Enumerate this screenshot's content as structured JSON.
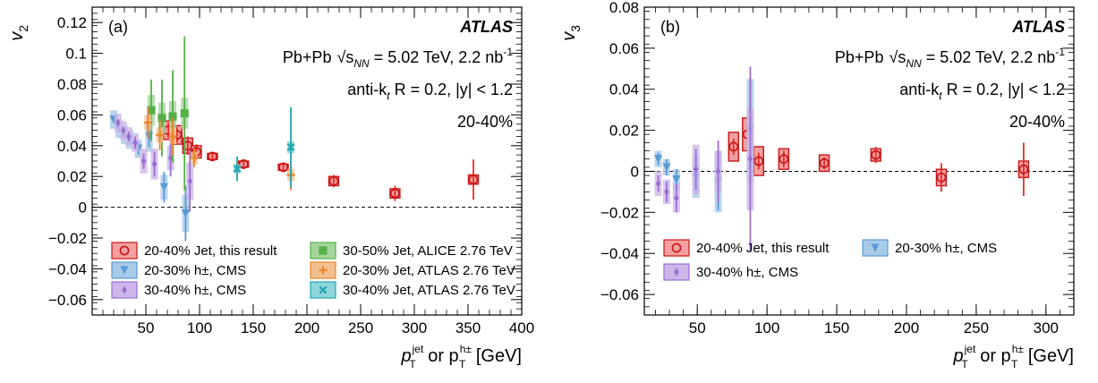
{
  "colors": {
    "this_result": "#f02828",
    "cms_2030": "#5a9bd5",
    "cms_3040": "#9a6fd0",
    "alice_3050": "#55b04a",
    "atlas276_2030": "#e8852a",
    "atlas276_3040": "#20a8b0"
  },
  "chart_data": [
    {
      "panel": "a",
      "type": "scatter",
      "panel_label": "(a)",
      "atlas_label": "ATLAS",
      "annotations": [
        "Pb+Pb",
        "√s",
        "NN",
        " = 5.02 TeV, 2.2 nb",
        "-1",
        "anti-k",
        "t",
        " R = 0.2, |y| < 1.2",
        "20-40%"
      ],
      "ylabel": "v",
      "ylabel_sub": "2",
      "xlabel": "p",
      "xlabel_sup1": "jet",
      "xlabel_sub1": "T",
      "xlabel_mid": " or p",
      "xlabel_sup2": "h±",
      "xlabel_sub2": "T",
      "xlabel_end": " [GeV]",
      "xlim": [
        0,
        400
      ],
      "ylim": [
        -0.07,
        0.13
      ],
      "xticks": [
        50,
        100,
        150,
        200,
        250,
        300,
        350,
        400
      ],
      "xtick_labels": [
        "50",
        "100",
        "150",
        "200",
        "250",
        "300",
        "350",
        "400"
      ],
      "yticks": [
        -0.06,
        -0.04,
        -0.02,
        0,
        0.02,
        0.04,
        0.06,
        0.08,
        0.1,
        0.12
      ],
      "ytick_labels": [
        "−0.06",
        "−0.04",
        "−0.02",
        "0",
        "0.02",
        "0.04",
        "0.06",
        "0.08",
        "0.1",
        "0.12"
      ],
      "legend": [
        {
          "label": "20-40% Jet, this result",
          "key": "this_result"
        },
        {
          "label": "30-50% Jet, ALICE 2.76 TeV",
          "key": "alice_3050"
        },
        {
          "label": "20-30% h±, CMS",
          "key": "cms_2030"
        },
        {
          "label": "20-30% Jet, ATLAS 2.76 TeV",
          "key": "atlas276_2030"
        },
        {
          "label": "30-40% h±, CMS",
          "key": "cms_3040"
        },
        {
          "label": "30-40% Jet, ATLAS 2.76 TeV",
          "key": "atlas276_3040"
        }
      ],
      "series": [
        {
          "key": "this_result",
          "marker": "circle",
          "x": [
            71,
            79,
            89,
            97,
            112,
            141,
            178,
            225,
            282,
            355
          ],
          "y": [
            0.05,
            0.047,
            0.04,
            0.036,
            0.033,
            0.028,
            0.026,
            0.017,
            0.009,
            0.018
          ],
          "err": [
            0.005,
            0.005,
            0.006,
            0.005,
            0.002,
            0.002,
            0.003,
            0.004,
            0.005,
            0.013
          ],
          "syst": [
            0.006,
            0.006,
            0.005,
            0.004,
            0.002,
            0.002,
            0.002,
            0.003,
            0.003,
            0.003
          ]
        },
        {
          "key": "cms_2030",
          "marker": "triangle-down",
          "x": [
            20,
            25,
            30,
            35,
            43,
            53,
            67,
            87
          ],
          "y": [
            0.057,
            0.051,
            0.047,
            0.044,
            0.038,
            0.046,
            0.013,
            -0.004
          ],
          "err": [
            0.002,
            0.002,
            0.003,
            0.003,
            0.004,
            0.007,
            0.01,
            0.018
          ],
          "syst": [
            0.006,
            0.006,
            0.006,
            0.006,
            0.006,
            0.01,
            0.008,
            0.012
          ]
        },
        {
          "key": "cms_3040",
          "marker": "diamond",
          "x": [
            24,
            29,
            34,
            40,
            48,
            58,
            73,
            91
          ],
          "y": [
            0.055,
            0.05,
            0.046,
            0.042,
            0.03,
            0.028,
            0.032,
            0.017
          ],
          "err": [
            0.002,
            0.002,
            0.003,
            0.004,
            0.005,
            0.008,
            0.012,
            0.02
          ],
          "syst": [
            0.006,
            0.006,
            0.006,
            0.006,
            0.008,
            0.01,
            0.008,
            0.012
          ]
        },
        {
          "key": "alice_3050",
          "marker": "square",
          "x": [
            55,
            65,
            75,
            86
          ],
          "y": [
            0.063,
            0.058,
            0.059,
            0.061
          ],
          "err": [
            0.02,
            0.025,
            0.03,
            0.05
          ],
          "syst": [
            0.01,
            0.01,
            0.01,
            0.01
          ]
        },
        {
          "key": "atlas276_2030",
          "marker": "cross",
          "x": [
            52,
            63,
            75,
            95,
            185
          ],
          "y": [
            0.055,
            0.047,
            0.046,
            0.032,
            0.021
          ],
          "err": [
            0.01,
            0.01,
            0.012,
            0.006,
            0.01
          ],
          "syst": [
            0.005,
            0.005,
            0.005,
            0.004,
            0.004
          ]
        },
        {
          "key": "atlas276_3040",
          "marker": "x",
          "x": [
            135,
            185
          ],
          "y": [
            0.025,
            0.039
          ],
          "err": [
            0.008,
            0.026
          ],
          "syst": [
            0.003,
            0.004
          ]
        }
      ]
    },
    {
      "panel": "b",
      "type": "scatter",
      "panel_label": "(b)",
      "atlas_label": "ATLAS",
      "annotations": [
        "Pb+Pb",
        "√s",
        "NN",
        " = 5.02 TeV, 2.2 nb",
        "-1",
        "anti-k",
        "t",
        " R = 0.2, |y| < 1.2",
        "20-40%"
      ],
      "ylabel": "v",
      "ylabel_sub": "3",
      "xlabel": "p",
      "xlabel_sup1": "jet",
      "xlabel_sub1": "T",
      "xlabel_mid": " or p",
      "xlabel_sup2": "h±",
      "xlabel_sub2": "T",
      "xlabel_end": " [GeV]",
      "xlim": [
        12,
        320
      ],
      "ylim": [
        -0.07,
        0.08
      ],
      "xticks": [
        50,
        100,
        150,
        200,
        250,
        300
      ],
      "xtick_labels": [
        "50",
        "100",
        "150",
        "200",
        "250",
        "300"
      ],
      "yticks": [
        -0.06,
        -0.04,
        -0.02,
        0,
        0.02,
        0.04,
        0.06,
        0.08
      ],
      "ytick_labels": [
        "−0.06",
        "−0.04",
        "−0.02",
        "0",
        "0.02",
        "0.04",
        "0.06",
        "0.08"
      ],
      "legend": [
        {
          "label": "20-40% Jet, this result",
          "key": "this_result"
        },
        {
          "label": "20-30% h±, CMS",
          "key": "cms_2030"
        },
        {
          "label": "30-40% h±, CMS",
          "key": "cms_3040"
        }
      ],
      "series": [
        {
          "key": "this_result",
          "marker": "circle",
          "x": [
            76,
            86,
            94,
            112,
            141,
            178,
            225,
            284
          ],
          "y": [
            0.012,
            0.018,
            0.005,
            0.006,
            0.004,
            0.008,
            -0.003,
            0.001
          ],
          "err": [
            0.004,
            0.005,
            0.004,
            0.004,
            0.003,
            0.004,
            0.007,
            0.013
          ],
          "syst": [
            0.007,
            0.008,
            0.007,
            0.005,
            0.004,
            0.003,
            0.004,
            0.004
          ]
        },
        {
          "key": "cms_2030",
          "marker": "triangle-down",
          "x": [
            22,
            28,
            35,
            49,
            65,
            88
          ],
          "y": [
            0.006,
            0.002,
            -0.004,
            -0.003,
            -0.005,
            0.02
          ],
          "err": [
            0.003,
            0.004,
            0.005,
            0.008,
            0.014,
            0.026
          ],
          "syst": [
            0.004,
            0.004,
            0.005,
            0.01,
            0.015,
            0.025
          ]
        },
        {
          "key": "cms_3040",
          "marker": "diamond",
          "x": [
            22,
            28,
            35,
            49,
            65,
            88
          ],
          "y": [
            -0.006,
            -0.01,
            -0.013,
            0.001,
            0.0,
            0.006
          ],
          "err": [
            0.004,
            0.005,
            0.007,
            0.01,
            0.015,
            0.045
          ],
          "syst": [
            0.006,
            0.006,
            0.007,
            0.012,
            0.01,
            0.025
          ]
        }
      ]
    }
  ]
}
